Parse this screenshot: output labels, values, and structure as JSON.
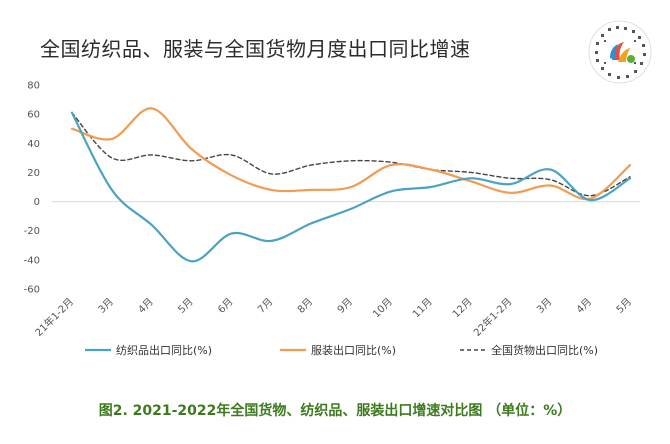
{
  "title": "全国纺织品、服装与全国货物月度出口同比增速",
  "caption": "图2. 2021-2022年全国货物、纺织品、服装出口增速对比图 （单位：%）",
  "icons": {
    "logo": "qr-code-logo"
  },
  "chart_data": {
    "type": "line",
    "categories": [
      "21年1-2月",
      "3月",
      "4月",
      "5月",
      "6月",
      "7月",
      "8月",
      "9月",
      "10月",
      "11月",
      "12月",
      "22年1-2月",
      "3月",
      "4月",
      "5月"
    ],
    "ylim": [
      -60,
      80
    ],
    "yticks": [
      "80",
      "60",
      "40",
      "20",
      "0",
      "-20",
      "-40",
      "-60"
    ],
    "grid": false,
    "legend_position": "bottom",
    "series": [
      {
        "name": "纺织品出口同比(%)",
        "color": "#4ba3c3",
        "dash": "solid",
        "values": [
          61,
          8,
          -16,
          -41,
          -22,
          -27,
          -15,
          -5,
          7,
          10,
          16,
          12,
          22,
          1,
          16
        ]
      },
      {
        "name": "服装出口同比(%)",
        "color": "#f29b52",
        "dash": "solid",
        "values": [
          50,
          43,
          64,
          36,
          18,
          8,
          8,
          10,
          25,
          22,
          14,
          6,
          11,
          2,
          25
        ]
      },
      {
        "name": "全国货物出口同比(%)",
        "color": "#444444",
        "dash": "dashed",
        "values": [
          61,
          30,
          32,
          28,
          32,
          19,
          25,
          28,
          27,
          22,
          20,
          16,
          15,
          4,
          17
        ]
      }
    ]
  }
}
